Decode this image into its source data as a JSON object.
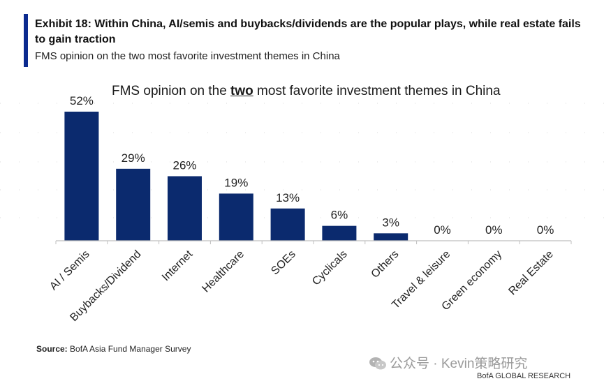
{
  "header": {
    "title": "Exhibit 18: Within China, AI/semis and buybacks/dividends are the popular plays, while real estate fails to gain traction",
    "subtitle": "FMS opinion on the two most favorite investment themes in China"
  },
  "chart_title": {
    "before": "FMS opinion on the ",
    "emph": "two",
    "after": " most favorite investment themes in China"
  },
  "source": {
    "label": "Source:",
    "text": " BofA Asia Fund Manager Survey"
  },
  "watermark": {
    "text": "公众号 · Kevin策略研究",
    "icon": "wechat-icon"
  },
  "footer": {
    "brand": "BofA GLOBAL RESEARCH"
  },
  "colors": {
    "bar": "#0b2a6e",
    "accent": "#0b2a8f"
  },
  "chart_data": {
    "type": "bar",
    "categories": [
      "AI / Semis",
      "Buybacks/Dividend",
      "Internet",
      "Healthcare",
      "SOEs",
      "Cyclicals",
      "Others",
      "Travel & leisure",
      "Green economy",
      "Real Estate"
    ],
    "values": [
      52,
      29,
      26,
      19,
      13,
      6,
      3,
      0,
      0,
      0
    ],
    "value_labels": [
      "52%",
      "29%",
      "26%",
      "19%",
      "13%",
      "6%",
      "3%",
      "0%",
      "0%",
      "0%"
    ],
    "unit": "%",
    "title": "FMS opinion on the two most favorite investment themes in China",
    "xlabel": "",
    "ylabel": "",
    "ylim": [
      0,
      52
    ],
    "grid": false,
    "legend": "none"
  }
}
